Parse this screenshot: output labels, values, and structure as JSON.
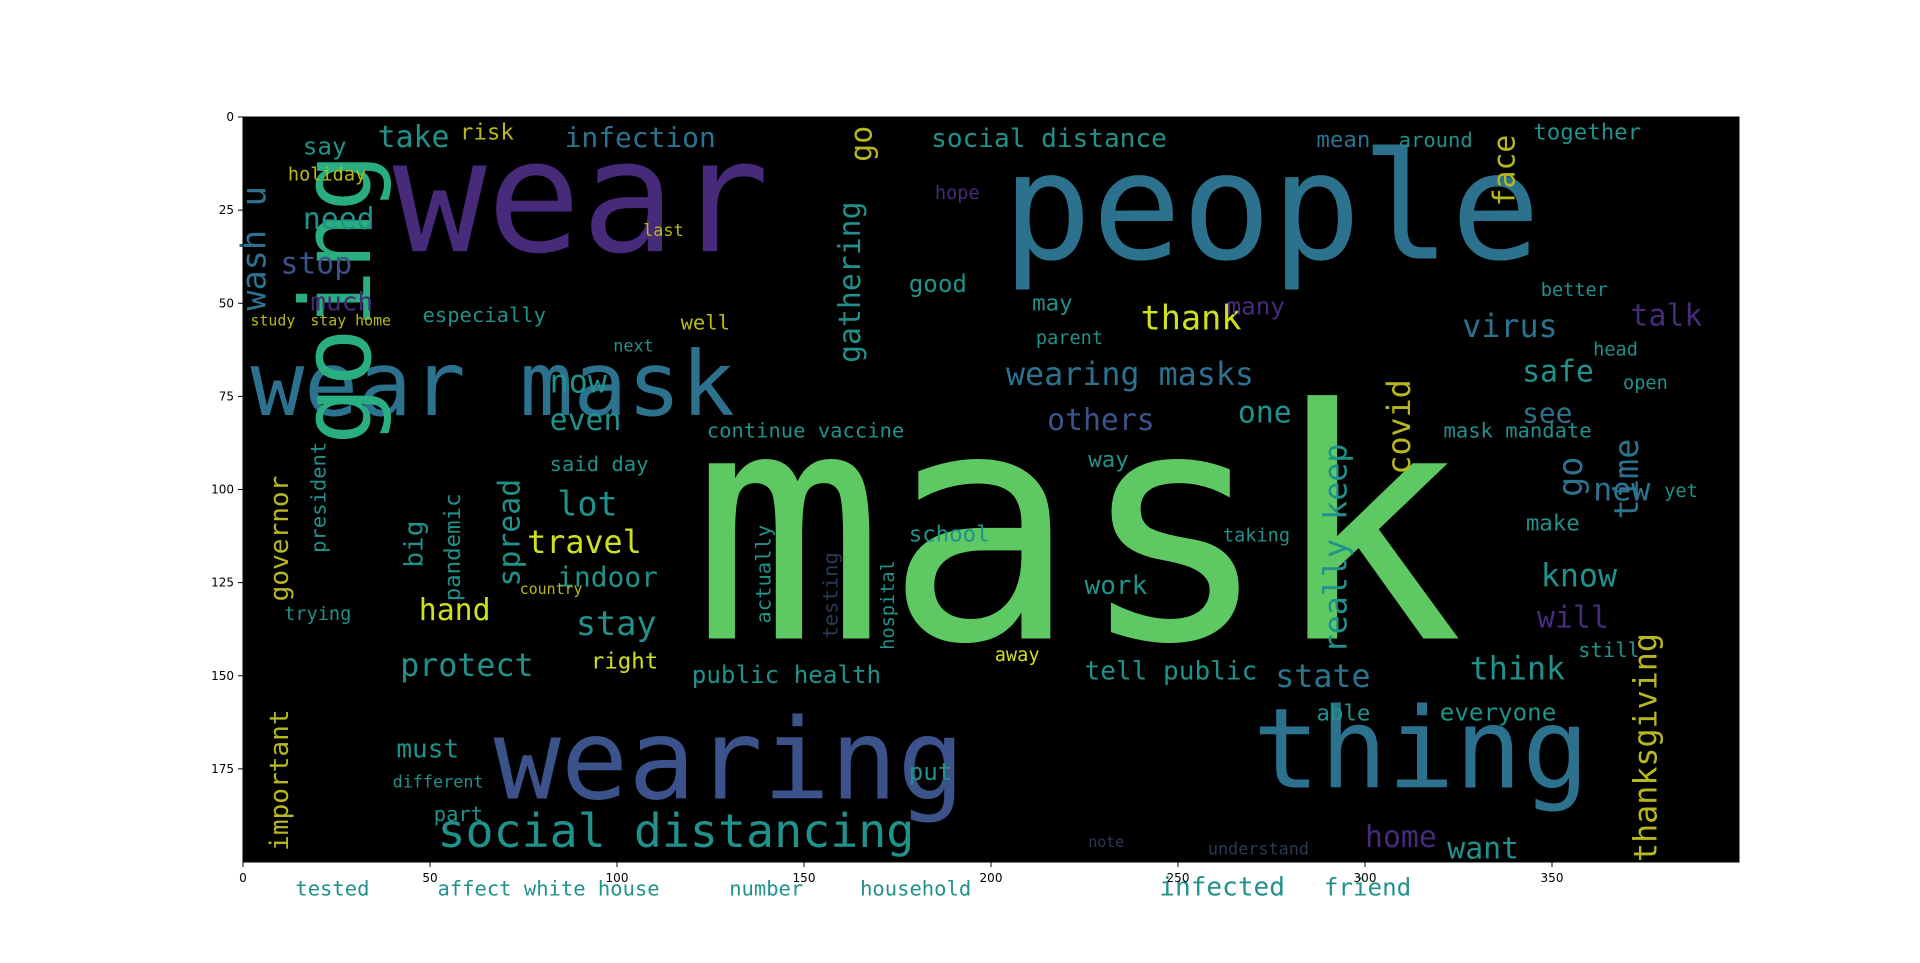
{
  "axes": {
    "x_ticks": [
      0,
      50,
      100,
      150,
      200,
      250,
      300,
      350
    ],
    "y_ticks": [
      0,
      25,
      50,
      75,
      100,
      125,
      150,
      175
    ],
    "xlim": [
      0,
      400
    ],
    "ylim": [
      200,
      0
    ]
  },
  "palette": {
    "purple": "#472a7a",
    "indigo": "#3b528b",
    "teal": "#2c728e",
    "aqua": "#21918c",
    "green": "#28ae80",
    "lime": "#5ec962",
    "lightlime": "#addc30",
    "yellow": "#cfe11c",
    "gold": "#b8b81e",
    "dark": "#2a3a55"
  },
  "words": [
    {
      "text": "wear",
      "x": 40,
      "y": 36,
      "size": 42,
      "color": "purple"
    },
    {
      "text": "people",
      "x": 203,
      "y": 38,
      "size": 40,
      "color": "teal"
    },
    {
      "text": "mask",
      "x": 120,
      "y": 140,
      "size": 86,
      "color": "lime"
    },
    {
      "text": "wear mask",
      "x": 2,
      "y": 80,
      "size": 24,
      "color": "teal"
    },
    {
      "text": "wearing",
      "x": 67,
      "y": 183,
      "size": 30,
      "color": "indigo"
    },
    {
      "text": "thing",
      "x": 270,
      "y": 180,
      "size": 30,
      "color": "teal"
    },
    {
      "text": "social distancing",
      "x": 52,
      "y": 196,
      "size": 12.5,
      "color": "aqua"
    },
    {
      "text": "going",
      "x": 34,
      "y": 88,
      "size": 26,
      "color": "green",
      "rotate": true
    },
    {
      "text": "wearing masks",
      "x": 204,
      "y": 72,
      "size": 8.5,
      "color": "teal"
    },
    {
      "text": "social distance",
      "x": 184,
      "y": 8,
      "size": 7,
      "color": "aqua"
    },
    {
      "text": "infection",
      "x": 86,
      "y": 8,
      "size": 7.5,
      "color": "teal"
    },
    {
      "text": "take",
      "x": 36,
      "y": 8,
      "size": 8,
      "color": "aqua"
    },
    {
      "text": "risk",
      "x": 58,
      "y": 6,
      "size": 6,
      "color": "gold"
    },
    {
      "text": "say",
      "x": 16,
      "y": 10,
      "size": 6.5,
      "color": "aqua"
    },
    {
      "text": "together",
      "x": 345,
      "y": 6,
      "size": 6,
      "color": "aqua"
    },
    {
      "text": "mean",
      "x": 287,
      "y": 8,
      "size": 6,
      "color": "teal"
    },
    {
      "text": "around",
      "x": 309,
      "y": 8,
      "size": 5.5,
      "color": "aqua"
    },
    {
      "text": "need",
      "x": 16,
      "y": 30,
      "size": 8,
      "color": "aqua"
    },
    {
      "text": "stop",
      "x": 10,
      "y": 42,
      "size": 8,
      "color": "indigo"
    },
    {
      "text": "much",
      "x": 18,
      "y": 52,
      "size": 7,
      "color": "purple"
    },
    {
      "text": "holiday",
      "x": 12,
      "y": 17,
      "size": 5,
      "color": "gold"
    },
    {
      "text": "thank",
      "x": 240,
      "y": 57,
      "size": 9,
      "color": "yellow"
    },
    {
      "text": "virus",
      "x": 326,
      "y": 59,
      "size": 8.5,
      "color": "teal"
    },
    {
      "text": "talk",
      "x": 371,
      "y": 56,
      "size": 8,
      "color": "purple"
    },
    {
      "text": "especially",
      "x": 48,
      "y": 55,
      "size": 5.5,
      "color": "aqua"
    },
    {
      "text": "well",
      "x": 117,
      "y": 57,
      "size": 5.5,
      "color": "gold"
    },
    {
      "text": "good",
      "x": 178,
      "y": 47,
      "size": 6.5,
      "color": "aqua"
    },
    {
      "text": "may",
      "x": 211,
      "y": 52,
      "size": 6,
      "color": "aqua"
    },
    {
      "text": "many",
      "x": 263,
      "y": 53,
      "size": 6.5,
      "color": "purple"
    },
    {
      "text": "parent",
      "x": 212,
      "y": 61,
      "size": 5,
      "color": "aqua"
    },
    {
      "text": "better",
      "x": 347,
      "y": 48,
      "size": 5,
      "color": "aqua"
    },
    {
      "text": "now",
      "x": 82,
      "y": 74,
      "size": 8.5,
      "color": "aqua"
    },
    {
      "text": "even",
      "x": 82,
      "y": 84,
      "size": 8,
      "color": "aqua"
    },
    {
      "text": "next",
      "x": 99,
      "y": 63,
      "size": 4.5,
      "color": "aqua"
    },
    {
      "text": "others",
      "x": 215,
      "y": 84,
      "size": 8,
      "color": "indigo"
    },
    {
      "text": "one",
      "x": 266,
      "y": 82,
      "size": 8,
      "color": "aqua"
    },
    {
      "text": "safe",
      "x": 342,
      "y": 71,
      "size": 8,
      "color": "aqua"
    },
    {
      "text": "see",
      "x": 342,
      "y": 82,
      "size": 7.5,
      "color": "teal"
    },
    {
      "text": "head",
      "x": 361,
      "y": 64,
      "size": 5,
      "color": "aqua"
    },
    {
      "text": "open",
      "x": 369,
      "y": 73,
      "size": 5,
      "color": "aqua"
    },
    {
      "text": "continue vaccine",
      "x": 124,
      "y": 86,
      "size": 5.5,
      "color": "aqua"
    },
    {
      "text": "mask mandate",
      "x": 321,
      "y": 86,
      "size": 5.5,
      "color": "aqua"
    },
    {
      "text": "said day",
      "x": 82,
      "y": 95,
      "size": 5.5,
      "color": "aqua"
    },
    {
      "text": "way",
      "x": 226,
      "y": 94,
      "size": 6,
      "color": "aqua"
    },
    {
      "text": "lot",
      "x": 84,
      "y": 107,
      "size": 9,
      "color": "aqua"
    },
    {
      "text": "travel",
      "x": 76,
      "y": 117,
      "size": 8.5,
      "color": "yellow"
    },
    {
      "text": "indoor",
      "x": 84,
      "y": 126,
      "size": 7.5,
      "color": "aqua"
    },
    {
      "text": "new",
      "x": 361,
      "y": 103,
      "size": 8.5,
      "color": "teal"
    },
    {
      "text": "yet",
      "x": 380,
      "y": 102,
      "size": 5,
      "color": "aqua"
    },
    {
      "text": "school",
      "x": 178,
      "y": 114,
      "size": 6,
      "color": "aqua"
    },
    {
      "text": "taking",
      "x": 262,
      "y": 114,
      "size": 5,
      "color": "aqua"
    },
    {
      "text": "make",
      "x": 343,
      "y": 111,
      "size": 6,
      "color": "aqua"
    },
    {
      "text": "know",
      "x": 347,
      "y": 126,
      "size": 8.5,
      "color": "aqua"
    },
    {
      "text": "work",
      "x": 225,
      "y": 128,
      "size": 7,
      "color": "aqua"
    },
    {
      "text": "stay",
      "x": 89,
      "y": 139,
      "size": 9,
      "color": "aqua"
    },
    {
      "text": "hand",
      "x": 47,
      "y": 135,
      "size": 8,
      "color": "yellow"
    },
    {
      "text": "will",
      "x": 346,
      "y": 137,
      "size": 8,
      "color": "purple"
    },
    {
      "text": "still",
      "x": 357,
      "y": 145,
      "size": 5.5,
      "color": "aqua"
    },
    {
      "text": "trying",
      "x": 11,
      "y": 135,
      "size": 5,
      "color": "aqua"
    },
    {
      "text": "protect",
      "x": 42,
      "y": 150,
      "size": 8.5,
      "color": "aqua"
    },
    {
      "text": "right",
      "x": 93,
      "y": 148,
      "size": 6,
      "color": "yellow"
    },
    {
      "text": "public health",
      "x": 120,
      "y": 152,
      "size": 6.5,
      "color": "aqua"
    },
    {
      "text": "away",
      "x": 201,
      "y": 146,
      "size": 5,
      "color": "yellow"
    },
    {
      "text": "tell",
      "x": 225,
      "y": 151,
      "size": 7,
      "color": "aqua"
    },
    {
      "text": "public",
      "x": 246,
      "y": 151,
      "size": 7,
      "color": "aqua"
    },
    {
      "text": "state",
      "x": 276,
      "y": 153,
      "size": 8.5,
      "color": "teal"
    },
    {
      "text": "think",
      "x": 328,
      "y": 151,
      "size": 8.5,
      "color": "aqua"
    },
    {
      "text": "able",
      "x": 287,
      "y": 162,
      "size": 6,
      "color": "aqua"
    },
    {
      "text": "everyone",
      "x": 320,
      "y": 162,
      "size": 6.5,
      "color": "aqua"
    },
    {
      "text": "must",
      "x": 41,
      "y": 172,
      "size": 7,
      "color": "aqua"
    },
    {
      "text": "different",
      "x": 40,
      "y": 180,
      "size": 4.5,
      "color": "aqua"
    },
    {
      "text": "put",
      "x": 178,
      "y": 178,
      "size": 6.5,
      "color": "aqua"
    },
    {
      "text": "part",
      "x": 51,
      "y": 189,
      "size": 5.5,
      "color": "aqua"
    },
    {
      "text": "home",
      "x": 300,
      "y": 196,
      "size": 8,
      "color": "purple"
    },
    {
      "text": "want",
      "x": 322,
      "y": 199,
      "size": 8,
      "color": "aqua"
    },
    {
      "text": "tested",
      "x": 14,
      "y": 209,
      "size": 5.5,
      "color": "aqua"
    },
    {
      "text": "affect white house",
      "x": 52,
      "y": 209,
      "size": 5.5,
      "color": "aqua"
    },
    {
      "text": "number",
      "x": 130,
      "y": 209,
      "size": 5.5,
      "color": "aqua"
    },
    {
      "text": "household",
      "x": 165,
      "y": 209,
      "size": 5.5,
      "color": "aqua"
    },
    {
      "text": "infected",
      "x": 245,
      "y": 209,
      "size": 7,
      "color": "aqua"
    },
    {
      "text": "friend",
      "x": 289,
      "y": 209,
      "size": 6.5,
      "color": "aqua"
    },
    {
      "text": "understand",
      "x": 258,
      "y": 198,
      "size": 4.5,
      "color": "dark"
    },
    {
      "text": "note",
      "x": 226,
      "y": 196,
      "size": 4,
      "color": "dark"
    },
    {
      "text": "last",
      "x": 107,
      "y": 32,
      "size": 4.5,
      "color": "gold"
    },
    {
      "text": "hope",
      "x": 185,
      "y": 22,
      "size": 5,
      "color": "purple"
    },
    {
      "text": "stay home",
      "x": 18,
      "y": 56,
      "size": 4,
      "color": "gold"
    },
    {
      "text": "study",
      "x": 2,
      "y": 56,
      "size": 4,
      "color": "gold"
    },
    {
      "text": "country",
      "x": 74,
      "y": 128,
      "size": 4,
      "color": "gold"
    },
    {
      "text": "wash",
      "x": 6,
      "y": 52,
      "size": 9,
      "color": "teal",
      "rotate": true
    },
    {
      "text": "u",
      "x": 6,
      "y": 24,
      "size": 9,
      "color": "teal",
      "rotate": true
    },
    {
      "text": "gathering",
      "x": 165,
      "y": 66,
      "size": 8,
      "color": "aqua",
      "rotate": true
    },
    {
      "text": "go",
      "x": 168,
      "y": 12,
      "size": 8,
      "color": "gold",
      "rotate": true
    },
    {
      "text": "face",
      "x": 340,
      "y": 24,
      "size": 8,
      "color": "gold",
      "rotate": true
    },
    {
      "text": "covid",
      "x": 312,
      "y": 96,
      "size": 8.5,
      "color": "gold",
      "rotate": true
    },
    {
      "text": "time",
      "x": 373,
      "y": 108,
      "size": 9,
      "color": "teal",
      "rotate": true
    },
    {
      "text": "go",
      "x": 358,
      "y": 102,
      "size": 9,
      "color": "teal",
      "rotate": true
    },
    {
      "text": "really keep",
      "x": 295,
      "y": 144,
      "size": 8.5,
      "color": "aqua",
      "rotate": true
    },
    {
      "text": "thanksgiving",
      "x": 378,
      "y": 200,
      "size": 8.5,
      "color": "gold",
      "rotate": true
    },
    {
      "text": "governor",
      "x": 12,
      "y": 130,
      "size": 7,
      "color": "gold",
      "rotate": true
    },
    {
      "text": "president",
      "x": 22,
      "y": 117,
      "size": 5.5,
      "color": "aqua",
      "rotate": true
    },
    {
      "text": "important",
      "x": 12,
      "y": 197,
      "size": 7,
      "color": "gold",
      "rotate": true
    },
    {
      "text": "big",
      "x": 48,
      "y": 121,
      "size": 7,
      "color": "aqua",
      "rotate": true
    },
    {
      "text": "pandemic",
      "x": 58,
      "y": 130,
      "size": 6,
      "color": "aqua",
      "rotate": true
    },
    {
      "text": "spread",
      "x": 74,
      "y": 126,
      "size": 8,
      "color": "aqua",
      "rotate": true
    },
    {
      "text": "actually",
      "x": 141,
      "y": 136,
      "size": 5.5,
      "color": "aqua",
      "rotate": true
    },
    {
      "text": "testing",
      "x": 159,
      "y": 140,
      "size": 5.5,
      "color": "dark",
      "rotate": true
    },
    {
      "text": "hospital",
      "x": 174,
      "y": 143,
      "size": 5,
      "color": "aqua",
      "rotate": true
    }
  ]
}
